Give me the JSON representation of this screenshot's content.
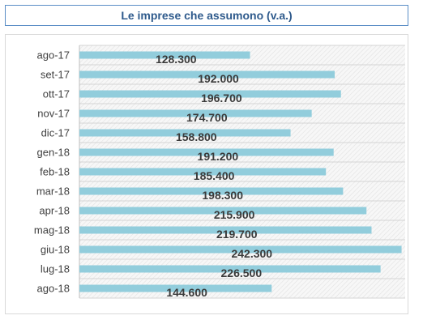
{
  "chart_data": {
    "type": "bar",
    "orientation": "horizontal",
    "title": "Le imprese che assumono (v.a.)",
    "categories": [
      "ago-17",
      "set-17",
      "ott-17",
      "nov-17",
      "dic-17",
      "gen-18",
      "feb-18",
      "mar-18",
      "apr-18",
      "mag-18",
      "giu-18",
      "lug-18",
      "ago-18"
    ],
    "values": [
      128300,
      192000,
      196700,
      174700,
      158800,
      191200,
      185400,
      198300,
      215900,
      219700,
      242300,
      226500,
      144600
    ],
    "value_labels": [
      "128.300",
      "192.000",
      "196.700",
      "174.700",
      "158.800",
      "191.200",
      "185.400",
      "198.300",
      "215.900",
      "219.700",
      "242.300",
      "226.500",
      "144.600"
    ],
    "xlim": [
      0,
      245000
    ],
    "grid": true,
    "legend": "none",
    "bar_color": "#92cddc",
    "title_color": "#2e5a8c",
    "title_border_color": "#5b8ec6"
  }
}
